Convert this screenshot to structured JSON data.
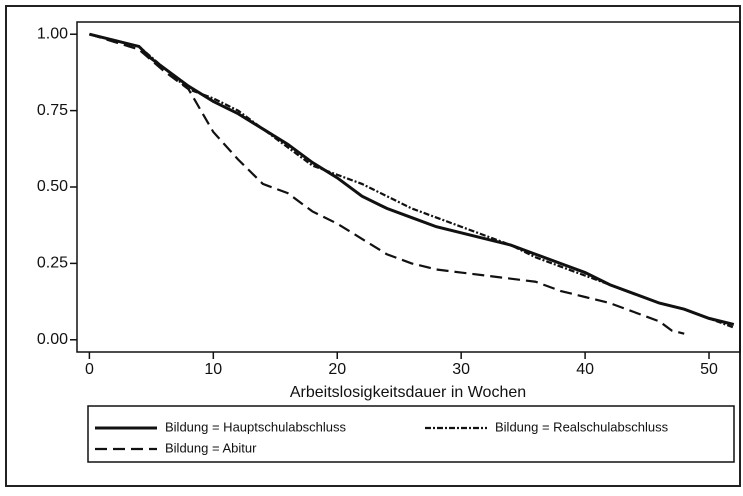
{
  "chart_data": {
    "type": "line",
    "xlabel": "Arbeitslosigkeitsdauer in Wochen",
    "xlim": [
      -1,
      52.5
    ],
    "ylim": [
      -0.04,
      1.04
    ],
    "xticks": [
      0,
      10,
      20,
      30,
      40,
      50
    ],
    "yticks": [
      {
        "value": 0,
        "label": "0.00"
      },
      {
        "value": 0.25,
        "label": "0.25"
      },
      {
        "value": 0.5,
        "label": "0.50"
      },
      {
        "value": 0.75,
        "label": "0.75"
      },
      {
        "value": 1,
        "label": "1.00"
      }
    ],
    "series": [
      {
        "name": "Bildung = Hauptschulabschluss",
        "color": "#111",
        "dash": "none",
        "x": [
          0,
          2,
          4,
          5,
          8,
          10,
          12,
          14,
          16,
          18,
          20,
          22,
          24,
          26,
          28,
          30,
          32,
          34,
          36,
          38,
          40,
          42,
          44,
          46,
          48,
          50,
          52
        ],
        "values": [
          1.0,
          0.98,
          0.96,
          0.92,
          0.83,
          0.78,
          0.74,
          0.69,
          0.64,
          0.58,
          0.53,
          0.47,
          0.43,
          0.4,
          0.37,
          0.35,
          0.33,
          0.31,
          0.28,
          0.25,
          0.22,
          0.18,
          0.15,
          0.12,
          0.1,
          0.07,
          0.05
        ]
      },
      {
        "name": "Bildung = Realschulabschluss",
        "color": "#111",
        "dash": "6 2 2 2",
        "x": [
          0,
          4,
          6,
          8,
          10,
          12,
          14,
          16,
          18,
          20,
          22,
          24,
          26,
          28,
          30,
          32,
          34,
          36,
          38,
          40,
          42,
          44,
          46,
          48,
          50,
          52
        ],
        "values": [
          1.0,
          0.96,
          0.89,
          0.82,
          0.79,
          0.75,
          0.69,
          0.63,
          0.57,
          0.54,
          0.51,
          0.47,
          0.43,
          0.4,
          0.37,
          0.34,
          0.31,
          0.27,
          0.24,
          0.21,
          0.18,
          0.15,
          0.12,
          0.1,
          0.07,
          0.04
        ]
      },
      {
        "name": "Bildung = Abitur",
        "color": "#111",
        "dash": "12 6",
        "x": [
          0,
          4,
          6,
          8,
          9,
          10,
          12,
          14,
          16,
          18,
          20,
          22,
          24,
          26,
          28,
          30,
          32,
          34,
          36,
          38,
          40,
          42,
          44,
          46,
          47,
          48
        ],
        "values": [
          1.0,
          0.95,
          0.88,
          0.82,
          0.75,
          0.68,
          0.59,
          0.51,
          0.48,
          0.42,
          0.38,
          0.33,
          0.28,
          0.25,
          0.23,
          0.22,
          0.21,
          0.2,
          0.19,
          0.16,
          0.14,
          0.12,
          0.09,
          0.06,
          0.03,
          0.02
        ]
      }
    ]
  }
}
